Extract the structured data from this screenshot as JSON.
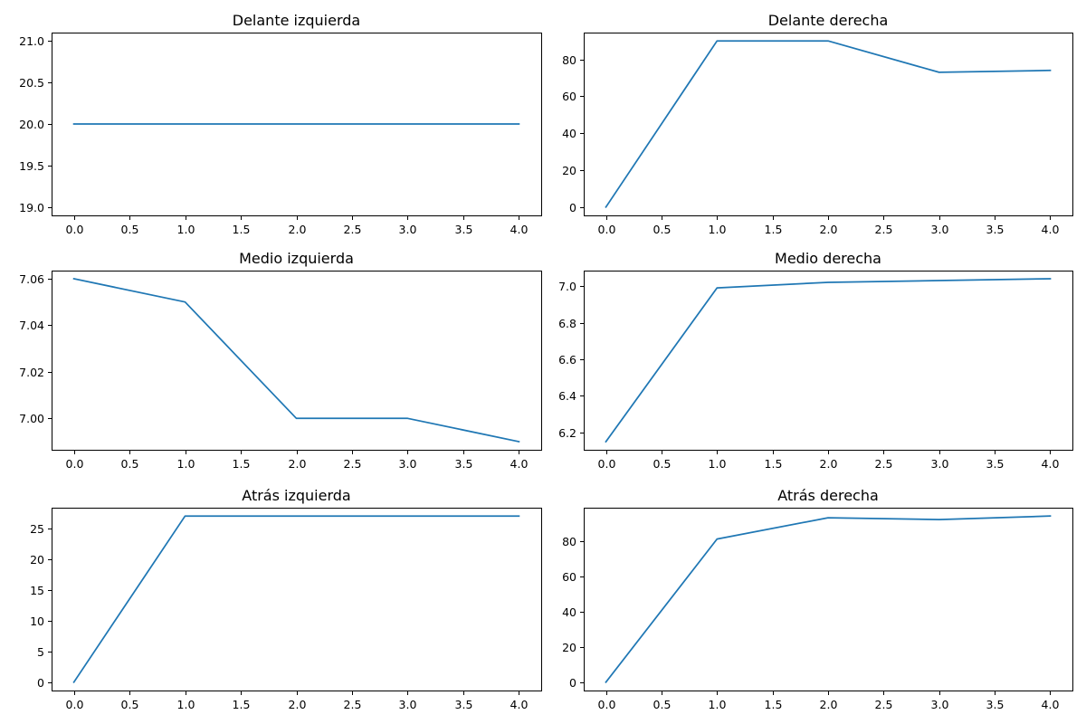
{
  "chart_data": [
    {
      "type": "line",
      "title": "Delante izquierda",
      "x": [
        0,
        1,
        2,
        3,
        4
      ],
      "values": [
        20,
        20,
        20,
        20,
        20
      ],
      "xlim": [
        -0.2,
        4.2
      ],
      "ylim": [
        18.9,
        21.1
      ],
      "xticks": [
        "0.0",
        "0.5",
        "1.0",
        "1.5",
        "2.0",
        "2.5",
        "3.0",
        "3.5",
        "4.0"
      ],
      "yticks": [
        "19.0",
        "19.5",
        "20.0",
        "20.5",
        "21.0"
      ],
      "color": "#1f77b4",
      "grid": false
    },
    {
      "type": "line",
      "title": "Delante derecha",
      "x": [
        0,
        1,
        2,
        3,
        4
      ],
      "values": [
        0,
        90,
        90,
        73,
        74
      ],
      "xlim": [
        -0.2,
        4.2
      ],
      "ylim": [
        -4.5,
        94.5
      ],
      "xticks": [
        "0.0",
        "0.5",
        "1.0",
        "1.5",
        "2.0",
        "2.5",
        "3.0",
        "3.5",
        "4.0"
      ],
      "yticks": [
        "0",
        "20",
        "40",
        "60",
        "80"
      ],
      "color": "#1f77b4",
      "grid": false
    },
    {
      "type": "line",
      "title": "Medio izquierda",
      "x": [
        0,
        1,
        2,
        3,
        4
      ],
      "values": [
        7.06,
        7.05,
        7.0,
        7.0,
        6.99
      ],
      "xlim": [
        -0.2,
        4.2
      ],
      "ylim": [
        6.9865,
        7.0635
      ],
      "xticks": [
        "0.0",
        "0.5",
        "1.0",
        "1.5",
        "2.0",
        "2.5",
        "3.0",
        "3.5",
        "4.0"
      ],
      "yticks": [
        "7.00",
        "7.02",
        "7.04",
        "7.06"
      ],
      "color": "#1f77b4",
      "grid": false
    },
    {
      "type": "line",
      "title": "Medio derecha",
      "x": [
        0,
        1,
        2,
        3,
        4
      ],
      "values": [
        6.15,
        6.99,
        7.02,
        7.03,
        7.04
      ],
      "xlim": [
        -0.2,
        4.2
      ],
      "ylim": [
        6.1055,
        7.0845
      ],
      "xticks": [
        "0.0",
        "0.5",
        "1.0",
        "1.5",
        "2.0",
        "2.5",
        "3.0",
        "3.5",
        "4.0"
      ],
      "yticks": [
        "6.2",
        "6.4",
        "6.6",
        "6.8",
        "7.0"
      ],
      "color": "#1f77b4",
      "grid": false
    },
    {
      "type": "line",
      "title": "Atrás izquierda",
      "x": [
        0,
        1,
        2,
        3,
        4
      ],
      "values": [
        0,
        27,
        27,
        27,
        27
      ],
      "xlim": [
        -0.2,
        4.2
      ],
      "ylim": [
        -1.35,
        28.35
      ],
      "xticks": [
        "0.0",
        "0.5",
        "1.0",
        "1.5",
        "2.0",
        "2.5",
        "3.0",
        "3.5",
        "4.0"
      ],
      "yticks": [
        "0",
        "5",
        "10",
        "15",
        "20",
        "25"
      ],
      "color": "#1f77b4",
      "grid": false
    },
    {
      "type": "line",
      "title": "Atrás derecha",
      "x": [
        0,
        1,
        2,
        3,
        4
      ],
      "values": [
        0,
        81,
        93,
        92,
        94
      ],
      "xlim": [
        -0.2,
        4.2
      ],
      "ylim": [
        -4.7,
        98.7
      ],
      "xticks": [
        "0.0",
        "0.5",
        "1.0",
        "1.5",
        "2.0",
        "2.5",
        "3.0",
        "3.5",
        "4.0"
      ],
      "yticks": [
        "0",
        "20",
        "40",
        "60",
        "80"
      ],
      "color": "#1f77b4",
      "grid": false
    }
  ]
}
